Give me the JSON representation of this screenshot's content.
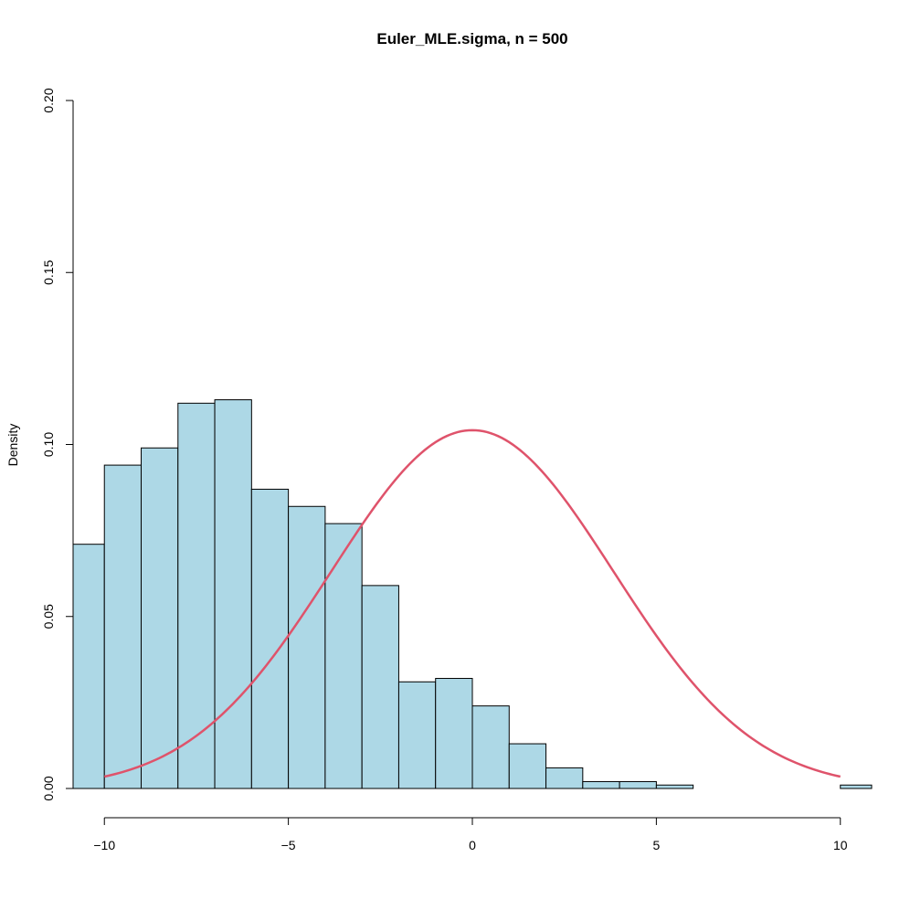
{
  "chart_data": {
    "type": "bar",
    "title": "Euler_MLE.sigma, n = 500",
    "xlabel": "",
    "ylabel": "Density",
    "xlim": [
      -10.85,
      10.85
    ],
    "ylim": [
      0,
      0.2
    ],
    "x_ticks": [
      -10,
      -5,
      0,
      5,
      10
    ],
    "x_tick_labels": [
      "−10",
      "−5",
      "0",
      "5",
      "10"
    ],
    "y_ticks": [
      0,
      0.05,
      0.1,
      0.15,
      0.2
    ],
    "y_tick_labels": [
      "0.00",
      "0.05",
      "0.10",
      "0.15",
      "0.20"
    ],
    "bins": [
      {
        "x0": -11,
        "x1": -10,
        "density": 0.071
      },
      {
        "x0": -10,
        "x1": -9,
        "density": 0.094
      },
      {
        "x0": -9,
        "x1": -8,
        "density": 0.099
      },
      {
        "x0": -8,
        "x1": -7,
        "density": 0.112
      },
      {
        "x0": -7,
        "x1": -6,
        "density": 0.113
      },
      {
        "x0": -6,
        "x1": -5,
        "density": 0.087
      },
      {
        "x0": -5,
        "x1": -4,
        "density": 0.082
      },
      {
        "x0": -4,
        "x1": -3,
        "density": 0.077
      },
      {
        "x0": -3,
        "x1": -2,
        "density": 0.059
      },
      {
        "x0": -2,
        "x1": -1,
        "density": 0.031
      },
      {
        "x0": -1,
        "x1": 0,
        "density": 0.032
      },
      {
        "x0": 0,
        "x1": 1,
        "density": 0.024
      },
      {
        "x0": 1,
        "x1": 2,
        "density": 0.013
      },
      {
        "x0": 2,
        "x1": 3,
        "density": 0.006
      },
      {
        "x0": 3,
        "x1": 4,
        "density": 0.002
      },
      {
        "x0": 4,
        "x1": 5,
        "density": 0.002
      },
      {
        "x0": 5,
        "x1": 6,
        "density": 0.001
      },
      {
        "x0": 6,
        "x1": 7,
        "density": 0.0
      },
      {
        "x0": 7,
        "x1": 8,
        "density": 0.0
      },
      {
        "x0": 8,
        "x1": 9,
        "density": 0.0
      },
      {
        "x0": 9,
        "x1": 10,
        "density": 0.0
      },
      {
        "x0": 10,
        "x1": 11,
        "density": 0.001
      }
    ],
    "curve": {
      "type": "normal-density",
      "mean": 0,
      "sd": 3.83,
      "x_range": [
        -10,
        10
      ]
    },
    "bar_fill": "#add8e6",
    "bar_stroke": "#000000",
    "curve_color": "#df536b",
    "grid": false
  }
}
